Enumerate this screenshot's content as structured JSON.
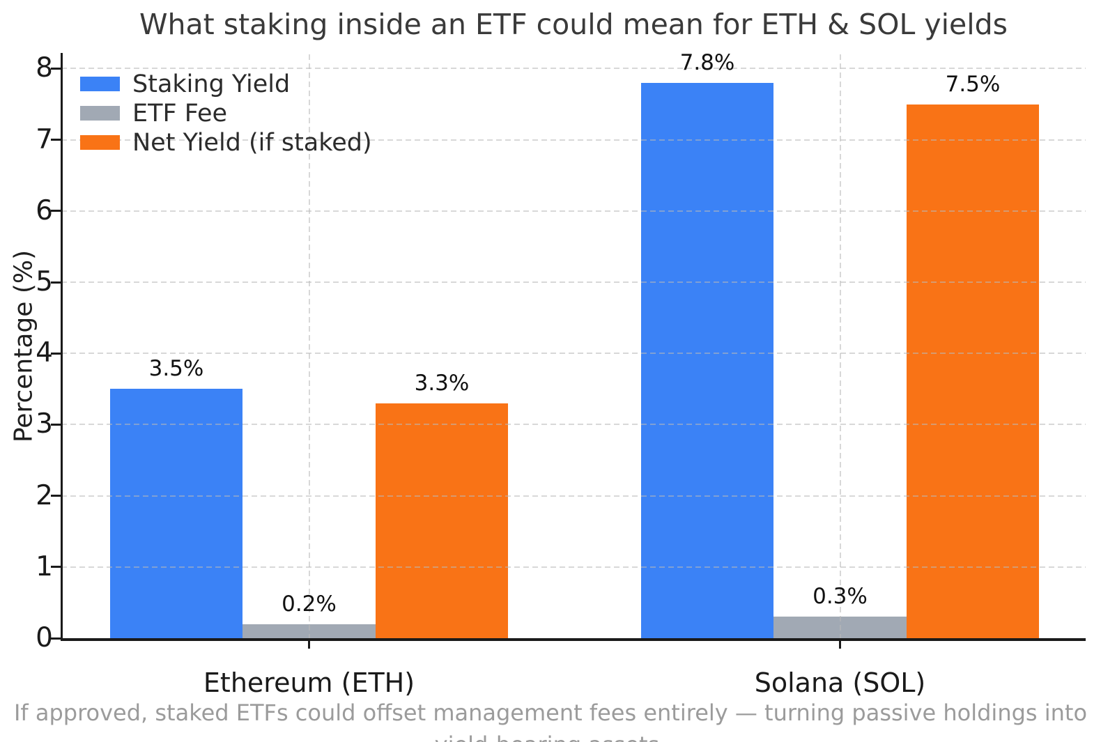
{
  "title": "What staking inside an ETF could mean for ETH & SOL yields",
  "caption": "If approved, staked ETFs could offset management fees entirely — turning passive holdings into yield-bearing assets.",
  "colors": {
    "staking": "#3b82f6",
    "fee": "#a1a9b4",
    "net": "#f97316",
    "grid": "#b9b9b9",
    "axis": "#1a1a1a",
    "title_text": "#3a3a3a",
    "tick_text": "#1a1a1a",
    "caption_text": "#9b9b9b",
    "background": "#ffffff"
  },
  "chart_data": {
    "type": "bar",
    "title": "What staking inside an ETF could mean for ETH & SOL yields",
    "categories": [
      "Ethereum (ETH)",
      "Solana (SOL)"
    ],
    "series": [
      {
        "name": "Staking Yield",
        "color_key": "staking",
        "values": [
          3.5,
          7.8
        ],
        "value_labels": [
          "3.5%",
          "7.8%"
        ]
      },
      {
        "name": "ETF Fee",
        "color_key": "fee",
        "values": [
          0.2,
          0.3
        ],
        "value_labels": [
          "0.2%",
          "0.3%"
        ]
      },
      {
        "name": "Net Yield (if staked)",
        "color_key": "net",
        "values": [
          3.3,
          7.5
        ],
        "value_labels": [
          "3.3%",
          "7.5%"
        ]
      }
    ],
    "xlabel": "",
    "ylabel": "Percentage (%)",
    "ylim": [
      0,
      8.2
    ],
    "yticks": [
      0,
      1,
      2,
      3,
      4,
      5,
      6,
      7,
      8
    ],
    "grid": true,
    "grid_style": "dashed",
    "legend_position": "upper left",
    "bar_width_units": 0.25
  }
}
